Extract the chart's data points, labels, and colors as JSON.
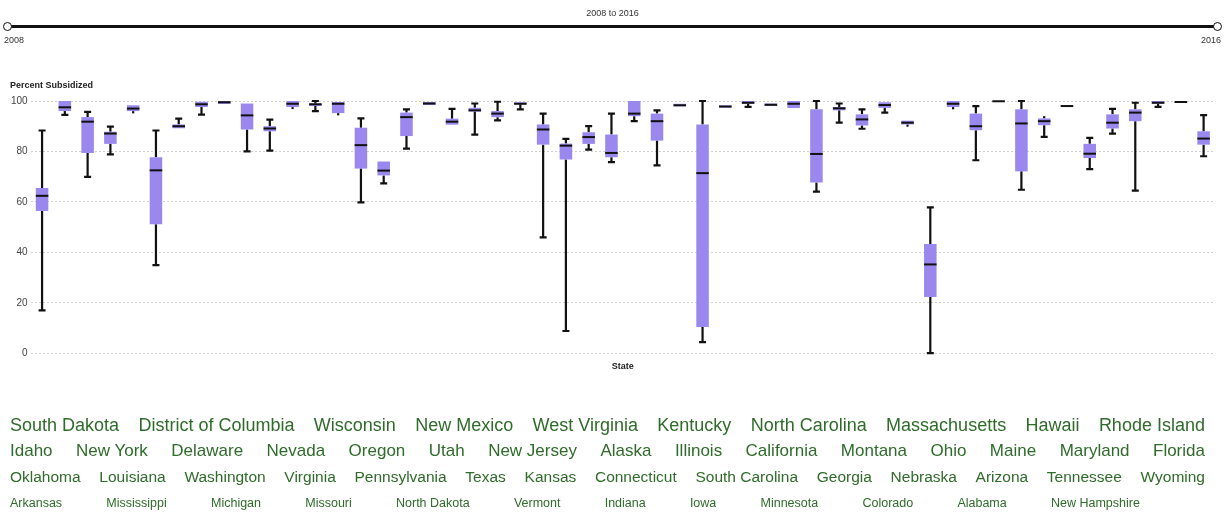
{
  "chart_data": [
    {
      "type": "box",
      "xlabel": "State",
      "ylabel": "Percent Subsidized",
      "annotations": [
        "2008 to 2016",
        "2008",
        "2016"
      ],
      "categories": [
        null,
        null,
        null,
        null,
        null,
        null,
        null,
        null,
        null,
        null,
        null,
        null,
        null,
        null,
        null,
        null,
        null,
        null,
        null,
        null,
        null,
        null,
        null,
        null,
        null,
        null,
        null,
        null,
        null,
        null,
        null,
        null,
        null,
        null,
        null,
        null,
        null,
        null,
        null,
        null,
        null,
        null,
        null,
        null,
        null,
        null,
        null,
        null,
        null,
        null,
        null,
        null
      ],
      "color": "#9a88ee",
      "ylim": [
        0,
        100
      ],
      "yticks": [
        0,
        20,
        40,
        60,
        80,
        100
      ],
      "grid": "y",
      "tick_labels": "y",
      "boxes": [
        {
          "low": 17,
          "q1": 56.4,
          "median": 62.4,
          "q3": 65.5,
          "high": 88.3
        },
        {
          "low": 94.5,
          "q1": 96,
          "median": 97.5,
          "q3": 100,
          "high": 100
        },
        {
          "low": 69.9,
          "q1": 79.4,
          "median": 91.8,
          "q3": 93.6,
          "high": 95.7
        },
        {
          "low": 78.8,
          "q1": 83,
          "median": 87.1,
          "q3": 87.8,
          "high": 89.8
        },
        {
          "low": 95.1,
          "q1": 96,
          "median": 97,
          "q3": 98.3,
          "high": 98.3
        },
        {
          "low": 34.9,
          "q1": 51.1,
          "median": 72.5,
          "q3": 77.7,
          "high": 88.3
        },
        {
          "low": 89.2,
          "q1": 89.2,
          "median": 90,
          "q3": 90.7,
          "high": 93
        },
        {
          "low": 94.6,
          "q1": 97.6,
          "median": 98.7,
          "q3": 99.7,
          "high": 99.7
        },
        {
          "low": 98.8,
          "q1": 98.8,
          "median": 99.5,
          "q3": 100,
          "high": 100
        },
        {
          "low": 80,
          "q1": 88.7,
          "median": 94.3,
          "q3": 99,
          "high": 99
        },
        {
          "low": 80.3,
          "q1": 88,
          "median": 89.1,
          "q3": 90,
          "high": 92.6
        },
        {
          "low": 96.8,
          "q1": 97.6,
          "median": 98.9,
          "q3": 100,
          "high": 100
        },
        {
          "low": 96,
          "q1": 98,
          "median": 98.7,
          "q3": 99,
          "high": 100
        },
        {
          "low": 94.3,
          "q1": 95.2,
          "median": 98.9,
          "q3": 99.6,
          "high": 99.6
        },
        {
          "low": 59.8,
          "q1": 73.2,
          "median": 82.5,
          "q3": 89.4,
          "high": 93.1
        },
        {
          "low": 67.3,
          "q1": 70.5,
          "median": 72.4,
          "q3": 76,
          "high": 76
        },
        {
          "low": 81.1,
          "q1": 86.1,
          "median": 93.6,
          "q3": 95.4,
          "high": 96.7
        },
        {
          "low": 98.4,
          "q1": 98.4,
          "median": 99,
          "q3": 99.6,
          "high": 99.6
        },
        {
          "low": 90.6,
          "q1": 90.6,
          "median": 91.8,
          "q3": 93,
          "high": 96.9
        },
        {
          "low": 86.7,
          "q1": 95.8,
          "median": 96.3,
          "q3": 97.3,
          "high": 99
        },
        {
          "low": 92.3,
          "q1": 93.6,
          "median": 95,
          "q3": 96,
          "high": 99.7
        },
        {
          "low": 96.7,
          "q1": 98.7,
          "median": 98.9,
          "q3": 99.5,
          "high": 99.5
        },
        {
          "low": 45.9,
          "q1": 82.7,
          "median": 88.7,
          "q3": 90.7,
          "high": 95
        },
        {
          "low": 8.8,
          "q1": 76.8,
          "median": 82.3,
          "q3": 83.1,
          "high": 85
        },
        {
          "low": 80.7,
          "q1": 83,
          "median": 85.7,
          "q3": 87.6,
          "high": 90
        },
        {
          "low": 75.8,
          "q1": 77.7,
          "median": 79.4,
          "q3": 86.7,
          "high": 95
        },
        {
          "low": 92,
          "q1": 94,
          "median": 95,
          "q3": 100,
          "high": 100
        },
        {
          "low": 74.5,
          "q1": 84.3,
          "median": 92,
          "q3": 95,
          "high": 96.3
        },
        {
          "low": 97.9,
          "q1": 97.9,
          "median": 98.3,
          "q3": 98.9,
          "high": 98.9
        },
        {
          "low": 4.4,
          "q1": 10.4,
          "median": 71.4,
          "q3": 90.7,
          "high": 100
        },
        {
          "low": 97.4,
          "q1": 97.4,
          "median": 97.8,
          "q3": 98.3,
          "high": 98.3
        },
        {
          "low": 97.7,
          "q1": 98.9,
          "median": 99.3,
          "q3": 100,
          "high": 100
        },
        {
          "low": 98,
          "q1": 98,
          "median": 98.5,
          "q3": 99,
          "high": 99
        },
        {
          "low": 97.2,
          "q1": 97.2,
          "median": 98.9,
          "q3": 100,
          "high": 100
        },
        {
          "low": 64.1,
          "q1": 67.7,
          "median": 79,
          "q3": 96.7,
          "high": 100
        },
        {
          "low": 91.4,
          "q1": 96.3,
          "median": 97.1,
          "q3": 97.6,
          "high": 99
        },
        {
          "low": 89,
          "q1": 90.3,
          "median": 92.7,
          "q3": 94.7,
          "high": 96.7
        },
        {
          "low": 95.4,
          "q1": 97.3,
          "median": 98.4,
          "q3": 99.5,
          "high": 99.5
        },
        {
          "low": 89.8,
          "q1": 90.7,
          "median": 91.4,
          "q3": 92.2,
          "high": 92.2
        },
        {
          "low": 0,
          "q1": 22.3,
          "median": 35.2,
          "q3": 43.3,
          "high": 57.8
        },
        {
          "low": 96.7,
          "q1": 97.6,
          "median": 98.9,
          "q3": 100,
          "high": 100
        },
        {
          "low": 76.5,
          "q1": 88.4,
          "median": 90,
          "q3": 95,
          "high": 98
        },
        {
          "low": 99.6,
          "q1": 99.6,
          "median": 99.9,
          "q3": 100,
          "high": 100
        },
        {
          "low": 64.8,
          "q1": 72.1,
          "median": 91.1,
          "q3": 96.7,
          "high": 100
        },
        {
          "low": 85.8,
          "q1": 90.4,
          "median": 92,
          "q3": 93.1,
          "high": 94
        },
        {
          "low": 97.7,
          "q1": 97.7,
          "median": 98,
          "q3": 98.3,
          "high": 98.3
        },
        {
          "low": 73,
          "q1": 77.4,
          "median": 79.1,
          "q3": 83,
          "high": 85.4
        },
        {
          "low": 87.1,
          "q1": 89.1,
          "median": 91.4,
          "q3": 94.7,
          "high": 96.9
        },
        {
          "low": 64.5,
          "q1": 92,
          "median": 95.4,
          "q3": 96.7,
          "high": 99.3
        },
        {
          "low": 97.7,
          "q1": 98.9,
          "median": 99.3,
          "q3": 100,
          "high": 100
        },
        {
          "low": 99.3,
          "q1": 99.3,
          "median": 99.6,
          "q3": 99.9,
          "high": 99.9
        },
        {
          "low": 78.1,
          "q1": 82.7,
          "median": 85.1,
          "q3": 88,
          "high": 94.4
        }
      ]
    },
    {
      "type": "other",
      "annotations": [
        "South Dakota",
        "District of Columbia",
        "Wisconsin",
        "New Mexico",
        "West Virginia",
        "Kentucky",
        "North Carolina",
        "Massachusetts",
        "Hawaii",
        "Rhode Island",
        "Idaho",
        "New York",
        "Delaware",
        "Nevada",
        "Oregon",
        "Utah",
        "New Jersey",
        "Alaska",
        "Illinois",
        "California",
        "Montana",
        "Ohio",
        "Maine",
        "Maryland",
        "Florida",
        "Oklahoma",
        "Louisiana",
        "Washington",
        "Virginia",
        "Pennsylvania",
        "Texas",
        "Kansas",
        "Connecticut",
        "South Carolina",
        "Georgia",
        "Nebraska",
        "Arizona",
        "Tennessee",
        "Wyoming",
        "Arkansas",
        "Mississippi",
        "Michigan",
        "Missouri",
        "North Dakota",
        "Vermont",
        "Indiana",
        "Iowa",
        "Minnesota",
        "Colorado",
        "Alabama",
        "New Hampshire"
      ]
    }
  ]
}
